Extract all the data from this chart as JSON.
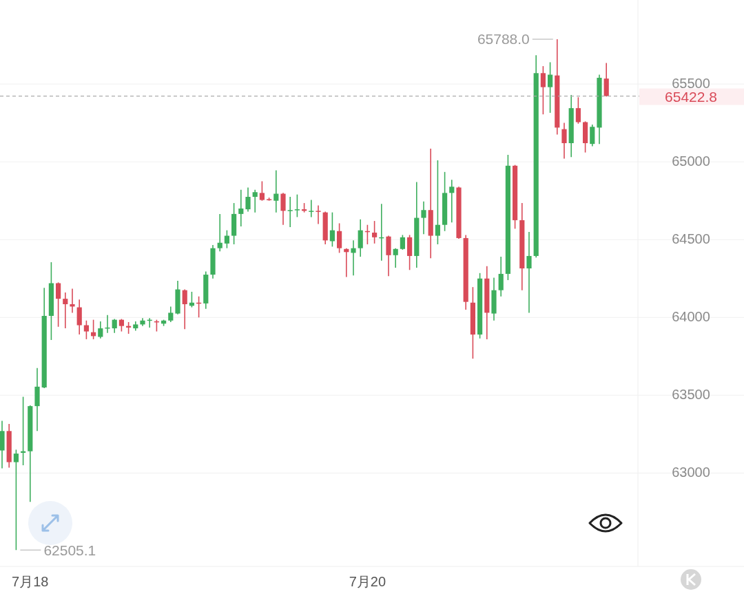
{
  "chart_data": {
    "type": "candlestick",
    "categories": [
      null,
      null,
      null,
      null,
      "7月18",
      null,
      null,
      null,
      null,
      null,
      null,
      null,
      null,
      null,
      null,
      null,
      null,
      null,
      null,
      null,
      null,
      null,
      null,
      null,
      null,
      null,
      null,
      null,
      null,
      null,
      null,
      null,
      null,
      null,
      null,
      null,
      null,
      null,
      null,
      null,
      null,
      null,
      null,
      null,
      null,
      null,
      null,
      null,
      null,
      null,
      null,
      null,
      "7月20",
      null,
      null,
      null,
      null,
      null,
      null,
      null,
      null,
      null,
      null,
      null,
      null,
      null,
      null,
      null,
      null,
      null,
      null,
      null,
      null,
      null,
      null,
      null,
      null,
      null,
      null,
      null,
      null,
      null,
      null,
      null,
      null,
      null,
      null
    ],
    "ohlc": [
      [
        63145,
        63335,
        63030,
        63270
      ],
      [
        63270,
        63315,
        63035,
        63070
      ],
      [
        63070,
        63150,
        62505.1,
        63125
      ],
      [
        63130,
        63490,
        63050,
        63140
      ],
      [
        63140,
        63435,
        62815,
        63430
      ],
      [
        63430,
        63675,
        63270,
        63555
      ],
      [
        63550,
        64190,
        63545,
        64010
      ],
      [
        64010,
        64355,
        63855,
        64220
      ],
      [
        64220,
        64225,
        63940,
        64120
      ],
      [
        64120,
        64160,
        63930,
        64085
      ],
      [
        64085,
        64185,
        64030,
        64070
      ],
      [
        64065,
        64115,
        63890,
        63950
      ],
      [
        63950,
        63980,
        63860,
        63910
      ],
      [
        63905,
        63985,
        63860,
        63880
      ],
      [
        63875,
        63975,
        63865,
        63930
      ],
      [
        63930,
        64015,
        63900,
        63935
      ],
      [
        63930,
        63990,
        63900,
        63985
      ],
      [
        63985,
        63990,
        63910,
        63945
      ],
      [
        63945,
        63970,
        63895,
        63935
      ],
      [
        63930,
        63975,
        63915,
        63955
      ],
      [
        63955,
        63995,
        63945,
        63980
      ],
      [
        63980,
        63995,
        63935,
        63985
      ],
      [
        63975,
        63985,
        63910,
        63970
      ],
      [
        63960,
        63985,
        63945,
        63980
      ],
      [
        63980,
        64070,
        63970,
        64030
      ],
      [
        64025,
        64235,
        64020,
        64180
      ],
      [
        64175,
        64180,
        63925,
        64085
      ],
      [
        64075,
        64165,
        64065,
        64095
      ],
      [
        64095,
        64135,
        64000,
        64090
      ],
      [
        64090,
        64295,
        64055,
        64275
      ],
      [
        64275,
        64465,
        64250,
        64445
      ],
      [
        64445,
        64665,
        64425,
        64480
      ],
      [
        64475,
        64560,
        64445,
        64525
      ],
      [
        64525,
        64735,
        64470,
        64665
      ],
      [
        64665,
        64820,
        64585,
        64700
      ],
      [
        64695,
        64835,
        64680,
        64775
      ],
      [
        64775,
        64820,
        64675,
        64805
      ],
      [
        64800,
        64875,
        64750,
        64755
      ],
      [
        64760,
        64770,
        64750,
        64755
      ],
      [
        64750,
        64945,
        64675,
        64795
      ],
      [
        64795,
        64800,
        64595,
        64685
      ],
      [
        64685,
        64775,
        64580,
        64690
      ],
      [
        64690,
        64790,
        64645,
        64695
      ],
      [
        64695,
        64735,
        64675,
        64685
      ],
      [
        64680,
        64755,
        64645,
        64685
      ],
      [
        64685,
        64720,
        64600,
        64680
      ],
      [
        64675,
        64680,
        64470,
        64495
      ],
      [
        64490,
        64675,
        64455,
        64560
      ],
      [
        64555,
        64605,
        64415,
        64445
      ],
      [
        64440,
        64445,
        64260,
        64420
      ],
      [
        64415,
        64495,
        64270,
        64445
      ],
      [
        64445,
        64630,
        64390,
        64560
      ],
      [
        64555,
        64595,
        64470,
        64550
      ],
      [
        64545,
        64620,
        64475,
        64515
      ],
      [
        64510,
        64730,
        64365,
        64515
      ],
      [
        64520,
        64525,
        64265,
        64400
      ],
      [
        64400,
        64445,
        64320,
        64440
      ],
      [
        64440,
        64530,
        64435,
        64515
      ],
      [
        64515,
        64530,
        64305,
        64395
      ],
      [
        64395,
        64870,
        64320,
        64640
      ],
      [
        64640,
        64745,
        64535,
        64690
      ],
      [
        64690,
        65085,
        64380,
        64525
      ],
      [
        64525,
        65010,
        64470,
        64595
      ],
      [
        64595,
        64935,
        64555,
        64800
      ],
      [
        64800,
        64885,
        64610,
        64840
      ],
      [
        64835,
        64840,
        64505,
        64510
      ],
      [
        64510,
        64530,
        64050,
        64100
      ],
      [
        64095,
        64195,
        63735,
        63890
      ],
      [
        63890,
        64285,
        63865,
        64250
      ],
      [
        64250,
        64330,
        63860,
        64030
      ],
      [
        64025,
        64255,
        63980,
        64175
      ],
      [
        64175,
        64390,
        64135,
        64280
      ],
      [
        64280,
        65045,
        64240,
        64975
      ],
      [
        64975,
        64980,
        64570,
        64625
      ],
      [
        64625,
        64735,
        64175,
        64315
      ],
      [
        64315,
        64550,
        64030,
        64395
      ],
      [
        64395,
        65685,
        64385,
        65570
      ],
      [
        65570,
        65615,
        65305,
        65480
      ],
      [
        65480,
        65640,
        65315,
        65560
      ],
      [
        65555,
        65788.0,
        65175,
        65220
      ],
      [
        65210,
        65250,
        65020,
        65120
      ],
      [
        65120,
        65430,
        65030,
        65345
      ],
      [
        65345,
        65415,
        65245,
        65255
      ],
      [
        65255,
        65260,
        65060,
        65120
      ],
      [
        65115,
        65240,
        65100,
        65225
      ],
      [
        65220,
        65560,
        65115,
        65540
      ],
      [
        65535,
        65635,
        65420,
        65422.8
      ]
    ],
    "colors": [
      "#3dae5d",
      "#d94a58",
      "#3dae5d",
      "#3dae5d",
      "#3dae5d",
      "#3dae5d",
      "#3dae5d",
      "#3dae5d",
      "#d94a58",
      "#d94a58",
      "#d94a58",
      "#d94a58",
      "#d94a58",
      "#d94a58",
      "#3dae5d",
      "#3dae5d",
      "#3dae5d",
      "#d94a58",
      "#d94a58",
      "#3dae5d",
      "#3dae5d",
      "#3dae5d",
      "#d94a58",
      "#3dae5d",
      "#3dae5d",
      "#3dae5d",
      "#d94a58",
      "#3dae5d",
      "#d94a58",
      "#3dae5d",
      "#3dae5d",
      "#3dae5d",
      "#3dae5d",
      "#3dae5d",
      "#3dae5d",
      "#3dae5d",
      "#3dae5d",
      "#d94a58",
      "#d94a58",
      "#3dae5d",
      "#d94a58",
      "#3dae5d",
      "#3dae5d",
      "#d94a58",
      "#3dae5d",
      "#d94a58",
      "#d94a58",
      "#3dae5d",
      "#d94a58",
      "#d94a58",
      "#3dae5d",
      "#3dae5d",
      "#d94a58",
      "#d94a58",
      "#3dae5d",
      "#d94a58",
      "#3dae5d",
      "#3dae5d",
      "#d94a58",
      "#3dae5d",
      "#3dae5d",
      "#d94a58",
      "#3dae5d",
      "#3dae5d",
      "#3dae5d",
      "#d94a58",
      "#d94a58",
      "#d94a58",
      "#3dae5d",
      "#d94a58",
      "#3dae5d",
      "#3dae5d",
      "#3dae5d",
      "#d94a58",
      "#d94a58",
      "#3dae5d",
      "#3dae5d",
      "#d94a58",
      "#3dae5d",
      "#d94a58",
      "#d94a58",
      "#3dae5d",
      "#d94a58",
      "#d94a58",
      "#3dae5d",
      "#3dae5d",
      "#d94a58"
    ],
    "ylim": [
      62400,
      66040
    ],
    "yticks": [
      63000,
      63500,
      64000,
      64500,
      65000,
      65500
    ],
    "grid": "y",
    "ref_lines": [
      {
        "axis": "y",
        "value": 65422.8,
        "label": "65422.8",
        "color": "#aaaaaa",
        "line_style": "dashed"
      }
    ],
    "annotations": [
      "65788.0",
      "62505.1"
    ]
  }
}
